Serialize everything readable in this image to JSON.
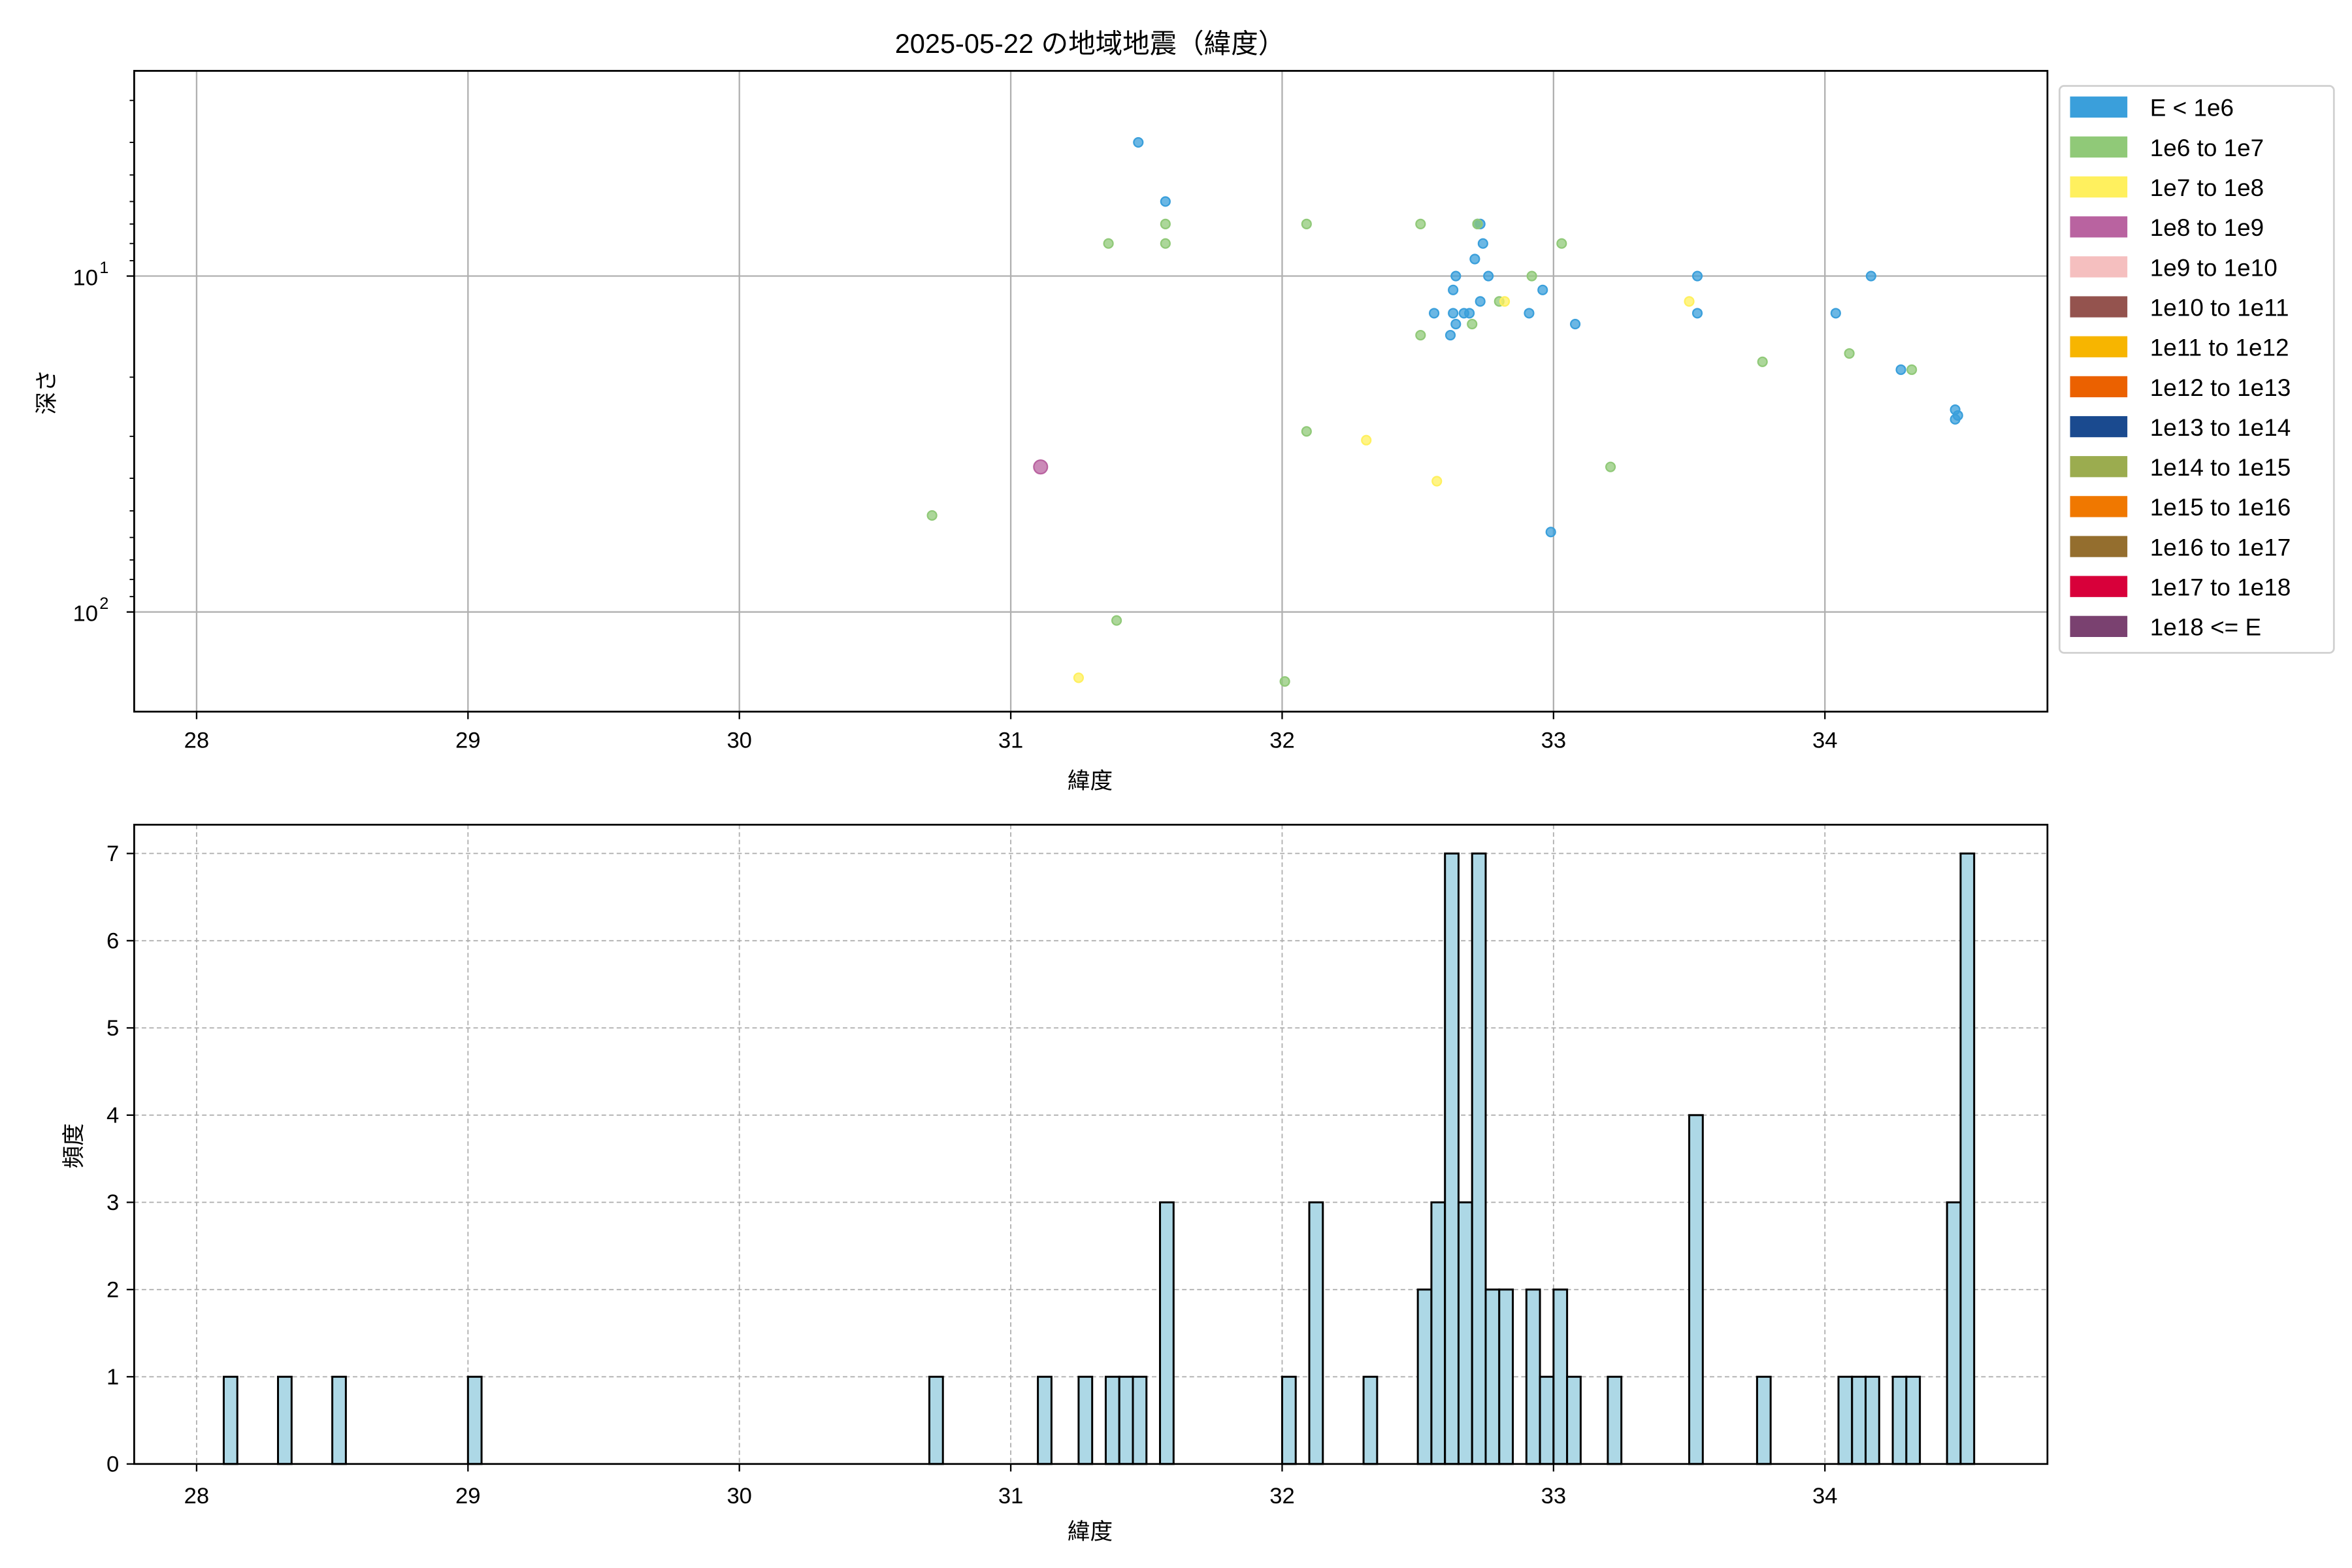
{
  "chart_data": [
    {
      "type": "scatter",
      "title": "2025-05-22 の地域地震（緯度）",
      "xlabel": "緯度",
      "ylabel": "深さ",
      "xlim": [
        27.77,
        34.82
      ],
      "ylim": [
        198,
        2.45
      ],
      "y_scale": "log",
      "y_inverted": true,
      "grid": true,
      "x_ticks": [
        28,
        29,
        30,
        31,
        32,
        33,
        34
      ],
      "y_major_ticks": [
        {
          "value": 10,
          "label_base": "10",
          "label_exp": "1"
        },
        {
          "value": 100,
          "label_base": "10",
          "label_exp": "2"
        }
      ],
      "legend_placement": "outside-right",
      "legend": [
        {
          "label": "E < 1e6",
          "color": "#3a9fdb"
        },
        {
          "label": "1e6 to 1e7",
          "color": "#90c978"
        },
        {
          "label": "1e7 to 1e8",
          "color": "#fff05e"
        },
        {
          "label": "1e8 to 1e9",
          "color": "#b963a0"
        },
        {
          "label": "1e9 to 1e10",
          "color": "#f5bfbf"
        },
        {
          "label": "1e10 to 1e11",
          "color": "#94534e"
        },
        {
          "label": "1e11 to 1e12",
          "color": "#f7b500"
        },
        {
          "label": "1e12 to 1e13",
          "color": "#eb6100"
        },
        {
          "label": "1e13 to 1e14",
          "color": "#1a4a8f"
        },
        {
          "label": "1e14 to 1e15",
          "color": "#9bac4f"
        },
        {
          "label": "1e15 to 1e16",
          "color": "#f07800"
        },
        {
          "label": "1e16 to 1e17",
          "color": "#946e2e"
        },
        {
          "label": "1e17 to 1e18",
          "color": "#d8003a"
        },
        {
          "label": "1e18 <= E",
          "color": "#7a4170"
        }
      ],
      "points": [
        {
          "lat": 31.47,
          "depth": 4.0,
          "cat": 0
        },
        {
          "lat": 31.57,
          "depth": 6.0,
          "cat": 0
        },
        {
          "lat": 32.72,
          "depth": 7.0,
          "cat": 0
        },
        {
          "lat": 32.73,
          "depth": 7.0,
          "cat": 0
        },
        {
          "lat": 32.74,
          "depth": 8.0,
          "cat": 0
        },
        {
          "lat": 32.71,
          "depth": 8.9,
          "cat": 0
        },
        {
          "lat": 32.64,
          "depth": 10,
          "cat": 0
        },
        {
          "lat": 32.76,
          "depth": 10,
          "cat": 0
        },
        {
          "lat": 32.63,
          "depth": 11,
          "cat": 0
        },
        {
          "lat": 32.73,
          "depth": 11.9,
          "cat": 0
        },
        {
          "lat": 32.56,
          "depth": 12.9,
          "cat": 0
        },
        {
          "lat": 32.63,
          "depth": 12.9,
          "cat": 0
        },
        {
          "lat": 32.67,
          "depth": 12.9,
          "cat": 0
        },
        {
          "lat": 32.69,
          "depth": 12.9,
          "cat": 0
        },
        {
          "lat": 32.91,
          "depth": 12.9,
          "cat": 0
        },
        {
          "lat": 32.64,
          "depth": 13.9,
          "cat": 0
        },
        {
          "lat": 32.62,
          "depth": 15,
          "cat": 0
        },
        {
          "lat": 32.96,
          "depth": 11,
          "cat": 0
        },
        {
          "lat": 33.08,
          "depth": 13.9,
          "cat": 0
        },
        {
          "lat": 33.53,
          "depth": 10,
          "cat": 0
        },
        {
          "lat": 33.53,
          "depth": 12.9,
          "cat": 0
        },
        {
          "lat": 34.04,
          "depth": 12.9,
          "cat": 0
        },
        {
          "lat": 34.17,
          "depth": 10,
          "cat": 0
        },
        {
          "lat": 34.28,
          "depth": 19,
          "cat": 0
        },
        {
          "lat": 34.48,
          "depth": 25,
          "cat": 0
        },
        {
          "lat": 34.49,
          "depth": 26,
          "cat": 0
        },
        {
          "lat": 34.48,
          "depth": 26.7,
          "cat": 0
        },
        {
          "lat": 32.99,
          "depth": 57.8,
          "cat": 0
        },
        {
          "lat": 31.36,
          "depth": 8,
          "cat": 1
        },
        {
          "lat": 31.57,
          "depth": 7,
          "cat": 1
        },
        {
          "lat": 31.57,
          "depth": 8,
          "cat": 1
        },
        {
          "lat": 32.09,
          "depth": 7,
          "cat": 1
        },
        {
          "lat": 32.51,
          "depth": 7,
          "cat": 1
        },
        {
          "lat": 32.72,
          "depth": 7,
          "cat": 1
        },
        {
          "lat": 33.03,
          "depth": 8,
          "cat": 1
        },
        {
          "lat": 32.92,
          "depth": 10,
          "cat": 1
        },
        {
          "lat": 32.8,
          "depth": 11.9,
          "cat": 1
        },
        {
          "lat": 32.7,
          "depth": 13.9,
          "cat": 1
        },
        {
          "lat": 32.51,
          "depth": 15,
          "cat": 1
        },
        {
          "lat": 33.77,
          "depth": 18,
          "cat": 1
        },
        {
          "lat": 34.09,
          "depth": 17,
          "cat": 1
        },
        {
          "lat": 34.32,
          "depth": 19,
          "cat": 1
        },
        {
          "lat": 32.09,
          "depth": 29,
          "cat": 1
        },
        {
          "lat": 33.21,
          "depth": 37,
          "cat": 1
        },
        {
          "lat": 30.71,
          "depth": 51.6,
          "cat": 1
        },
        {
          "lat": 31.39,
          "depth": 106,
          "cat": 1
        },
        {
          "lat": 32.01,
          "depth": 161,
          "cat": 1
        },
        {
          "lat": 32.82,
          "depth": 11.9,
          "cat": 2
        },
        {
          "lat": 33.5,
          "depth": 11.9,
          "cat": 2
        },
        {
          "lat": 32.31,
          "depth": 30.8,
          "cat": 2
        },
        {
          "lat": 32.57,
          "depth": 40.8,
          "cat": 2
        },
        {
          "lat": 31.25,
          "depth": 157,
          "cat": 2
        },
        {
          "lat": 31.11,
          "depth": 37,
          "cat": 3
        }
      ]
    },
    {
      "type": "bar",
      "subtype": "histogram",
      "xlabel": "緯度",
      "ylabel": "頻度",
      "xlim": [
        27.77,
        34.82
      ],
      "ylim": [
        0,
        7.33
      ],
      "grid": true,
      "grid_style": "dashed",
      "x_ticks": [
        28,
        29,
        30,
        31,
        32,
        33,
        34
      ],
      "y_ticks": [
        0,
        1,
        2,
        3,
        4,
        5,
        6,
        7
      ],
      "bar_color": "#add8e6",
      "edge_color": "#000000",
      "bin_width": 0.05,
      "bins": [
        {
          "left": 28.1,
          "count": 1
        },
        {
          "left": 28.3,
          "count": 1
        },
        {
          "left": 28.5,
          "count": 1
        },
        {
          "left": 29.0,
          "count": 1
        },
        {
          "left": 30.7,
          "count": 1
        },
        {
          "left": 31.1,
          "count": 1
        },
        {
          "left": 31.25,
          "count": 1
        },
        {
          "left": 31.35,
          "count": 1
        },
        {
          "left": 31.4,
          "count": 1
        },
        {
          "left": 31.45,
          "count": 1
        },
        {
          "left": 31.55,
          "count": 3
        },
        {
          "left": 32.0,
          "count": 1
        },
        {
          "left": 32.1,
          "count": 3
        },
        {
          "left": 32.3,
          "count": 1
        },
        {
          "left": 32.5,
          "count": 2
        },
        {
          "left": 32.55,
          "count": 3
        },
        {
          "left": 32.6,
          "count": 7
        },
        {
          "left": 32.65,
          "count": 3
        },
        {
          "left": 32.7,
          "count": 7
        },
        {
          "left": 32.75,
          "count": 2
        },
        {
          "left": 32.8,
          "count": 2
        },
        {
          "left": 32.9,
          "count": 2
        },
        {
          "left": 32.95,
          "count": 1
        },
        {
          "left": 33.0,
          "count": 2
        },
        {
          "left": 33.05,
          "count": 1
        },
        {
          "left": 33.2,
          "count": 1
        },
        {
          "left": 33.5,
          "count": 4
        },
        {
          "left": 33.75,
          "count": 1
        },
        {
          "left": 34.05,
          "count": 1
        },
        {
          "left": 34.1,
          "count": 1
        },
        {
          "left": 34.15,
          "count": 1
        },
        {
          "left": 34.25,
          "count": 1
        },
        {
          "left": 34.3,
          "count": 1
        },
        {
          "left": 34.45,
          "count": 3
        },
        {
          "left": 34.5,
          "count": 7
        }
      ]
    }
  ]
}
